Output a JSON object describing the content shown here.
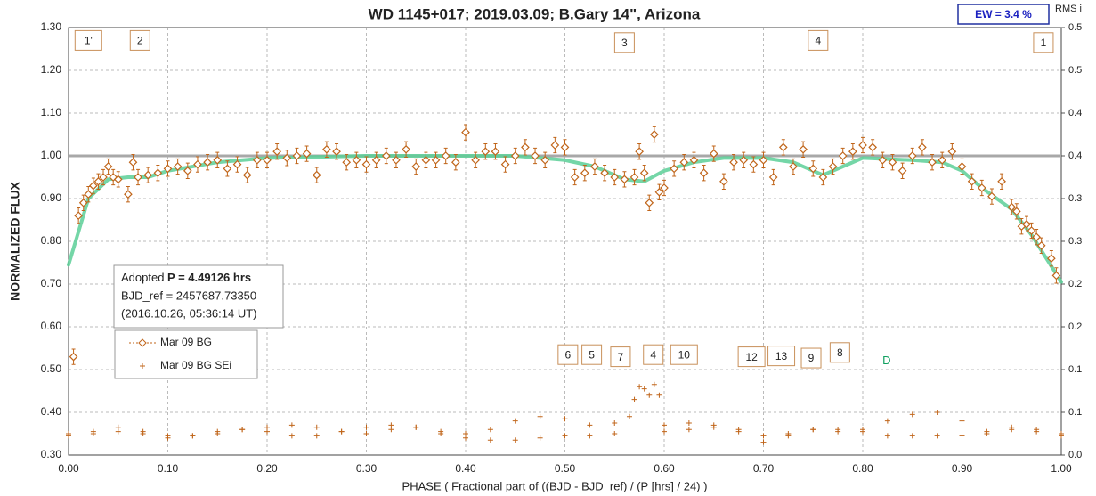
{
  "chart_data": {
    "type": "scatter",
    "title": "WD 1145+017; 2019.03.09; B.Gary 14\",  Arizona",
    "ew_label": "EW =  3.4 %",
    "rms_label": "RMS i",
    "xlabel": "PHASE ( Fractional part of ((BJD - BJD_ref) / (P [hrs] / 24) )",
    "ylabel": "NORMALIZED FLUX",
    "xlim": [
      0,
      1
    ],
    "xticks": [
      {
        "value": 0,
        "label": "0.00"
      },
      {
        "value": 0.1,
        "label": "0.10"
      },
      {
        "value": 0.2,
        "label": "0.20"
      },
      {
        "value": 0.3,
        "label": "0.30"
      },
      {
        "value": 0.4,
        "label": "0.40"
      },
      {
        "value": 0.5,
        "label": "0.50"
      },
      {
        "value": 0.6,
        "label": "0.60"
      },
      {
        "value": 0.7,
        "label": "0.70"
      },
      {
        "value": 0.8,
        "label": "0.80"
      },
      {
        "value": 0.9,
        "label": "0.90"
      },
      {
        "value": 1,
        "label": "1.00"
      }
    ],
    "ylim": [
      0.3,
      1.3
    ],
    "yticks": [
      {
        "value": 0.3,
        "label": "0.30"
      },
      {
        "value": 0.4,
        "label": "0.40"
      },
      {
        "value": 0.5,
        "label": "0.50"
      },
      {
        "value": 0.6,
        "label": "0.60"
      },
      {
        "value": 0.7,
        "label": "0.70"
      },
      {
        "value": 0.8,
        "label": "0.80"
      },
      {
        "value": 0.9,
        "label": "0.90"
      },
      {
        "value": 1.0,
        "label": "1.00"
      },
      {
        "value": 1.1,
        "label": "1.10"
      },
      {
        "value": 1.2,
        "label": "1.20"
      },
      {
        "value": 1.3,
        "label": "1.30"
      }
    ],
    "y2lim": [
      0,
      0.5
    ],
    "y2ticks": [
      {
        "value": 0,
        "label": "0.0"
      },
      {
        "value": 0.05,
        "label": "0.1"
      },
      {
        "value": 0.1,
        "label": "0.1"
      },
      {
        "value": 0.15,
        "label": "0.2"
      },
      {
        "value": 0.2,
        "label": "0.2"
      },
      {
        "value": 0.25,
        "label": "0.3"
      },
      {
        "value": 0.3,
        "label": "0.3"
      },
      {
        "value": 0.35,
        "label": "0.4"
      },
      {
        "value": 0.4,
        "label": "0.4"
      },
      {
        "value": 0.45,
        "label": "0.5"
      },
      {
        "value": 0.5,
        "label": "0.5"
      }
    ],
    "grid": true,
    "reference_line": 1.0,
    "info": {
      "line1_prefix": "Adopted ",
      "line1_bold": "P = 4.49126 hrs",
      "line2": "BJD_ref = 2457687.73350",
      "line3": "(2016.10.26, 05:36:14 UT)"
    },
    "series": [
      {
        "name": "Mar 09 BG",
        "color": "#c0651a",
        "marker": "diamond",
        "error": 0.018,
        "x": [
          0.005,
          0.01,
          0.015,
          0.02,
          0.025,
          0.03,
          0.035,
          0.04,
          0.045,
          0.05,
          0.06,
          0.065,
          0.07,
          0.08,
          0.09,
          0.1,
          0.11,
          0.12,
          0.13,
          0.14,
          0.15,
          0.16,
          0.17,
          0.18,
          0.19,
          0.2,
          0.21,
          0.22,
          0.23,
          0.24,
          0.25,
          0.26,
          0.27,
          0.28,
          0.29,
          0.3,
          0.31,
          0.32,
          0.33,
          0.34,
          0.35,
          0.36,
          0.37,
          0.38,
          0.39,
          0.4,
          0.41,
          0.42,
          0.43,
          0.44,
          0.45,
          0.46,
          0.47,
          0.48,
          0.49,
          0.5,
          0.51,
          0.52,
          0.53,
          0.54,
          0.55,
          0.56,
          0.57,
          0.575,
          0.58,
          0.585,
          0.59,
          0.595,
          0.6,
          0.61,
          0.62,
          0.63,
          0.64,
          0.65,
          0.66,
          0.67,
          0.68,
          0.69,
          0.7,
          0.71,
          0.72,
          0.73,
          0.74,
          0.75,
          0.76,
          0.77,
          0.78,
          0.79,
          0.8,
          0.81,
          0.82,
          0.83,
          0.84,
          0.85,
          0.86,
          0.87,
          0.88,
          0.89,
          0.9,
          0.91,
          0.92,
          0.93,
          0.94,
          0.95,
          0.955,
          0.96,
          0.965,
          0.97,
          0.975,
          0.98,
          0.99,
          0.995
        ],
        "values": [
          0.53,
          0.86,
          0.89,
          0.91,
          0.93,
          0.94,
          0.95,
          0.975,
          0.95,
          0.945,
          0.91,
          0.985,
          0.95,
          0.955,
          0.96,
          0.97,
          0.975,
          0.965,
          0.98,
          0.985,
          0.99,
          0.97,
          0.98,
          0.955,
          0.99,
          0.99,
          1.01,
          0.995,
          1.0,
          1.005,
          0.955,
          1.015,
          1.01,
          0.985,
          0.99,
          0.98,
          0.99,
          1.0,
          0.99,
          1.015,
          0.975,
          0.99,
          0.99,
          1.0,
          0.985,
          1.055,
          0.99,
          1.01,
          1.01,
          0.98,
          1.0,
          1.02,
          1.0,
          0.99,
          1.025,
          1.02,
          0.95,
          0.96,
          0.975,
          0.96,
          0.95,
          0.945,
          0.95,
          1.01,
          0.96,
          0.89,
          1.05,
          0.915,
          0.925,
          0.97,
          0.985,
          0.99,
          0.96,
          1.005,
          0.94,
          0.985,
          0.99,
          0.98,
          0.99,
          0.95,
          1.02,
          0.975,
          1.015,
          0.97,
          0.95,
          0.975,
          1.0,
          1.01,
          1.025,
          1.02,
          0.99,
          0.985,
          0.965,
          1.0,
          1.02,
          0.985,
          0.99,
          1.01,
          0.975,
          0.94,
          0.925,
          0.905,
          0.94,
          0.88,
          0.87,
          0.835,
          0.84,
          0.825,
          0.81,
          0.79,
          0.76,
          0.72
        ]
      },
      {
        "name": "Mar 09 BG SEi",
        "color": "#c0651a",
        "marker": "plus",
        "x": [
          0,
          0.025,
          0.05,
          0.075,
          0.1,
          0.125,
          0.15,
          0.175,
          0.2,
          0.225,
          0.25,
          0.275,
          0.3,
          0.325,
          0.35,
          0.375,
          0.4,
          0.425,
          0.45,
          0.475,
          0.5,
          0.525,
          0.55,
          0.565,
          0.57,
          0.575,
          0.58,
          0.585,
          0.59,
          0.595,
          0.6,
          0.625,
          0.65,
          0.675,
          0.7,
          0.725,
          0.75,
          0.775,
          0.8,
          0.825,
          0.85,
          0.875,
          0.9,
          0.925,
          0.95,
          0.975,
          1.0,
          0,
          0.025,
          0.05,
          0.075,
          0.1,
          0.125,
          0.15,
          0.175,
          0.2,
          0.225,
          0.25,
          0.275,
          0.3,
          0.325,
          0.35,
          0.375,
          0.4,
          0.425,
          0.45,
          0.475,
          0.5,
          0.525,
          0.55,
          0.6,
          0.625,
          0.65,
          0.675,
          0.7,
          0.725,
          0.75,
          0.775,
          0.8,
          0.825,
          0.85,
          0.875,
          0.9,
          0.925,
          0.95,
          0.975,
          1.0
        ],
        "values": [
          0.35,
          0.355,
          0.365,
          0.355,
          0.345,
          0.345,
          0.35,
          0.36,
          0.365,
          0.37,
          0.365,
          0.355,
          0.35,
          0.36,
          0.365,
          0.355,
          0.35,
          0.36,
          0.38,
          0.39,
          0.385,
          0.37,
          0.375,
          0.39,
          0.43,
          0.46,
          0.455,
          0.44,
          0.465,
          0.44,
          0.37,
          0.375,
          0.37,
          0.355,
          0.33,
          0.345,
          0.36,
          0.355,
          0.36,
          0.38,
          0.395,
          0.4,
          0.38,
          0.355,
          0.365,
          0.36,
          0.35,
          0.345,
          0.35,
          0.355,
          0.35,
          0.34,
          0.345,
          0.355,
          0.36,
          0.355,
          0.345,
          0.345,
          0.355,
          0.365,
          0.37,
          0.365,
          0.35,
          0.34,
          0.335,
          0.335,
          0.34,
          0.345,
          0.345,
          0.35,
          0.355,
          0.36,
          0.365,
          0.36,
          0.345,
          0.35,
          0.36,
          0.36,
          0.355,
          0.345,
          0.345,
          0.345,
          0.345,
          0.35,
          0.36,
          0.355,
          0.345
        ]
      }
    ],
    "fit": {
      "color": "#5ccf98",
      "x": [
        0,
        0.02,
        0.04,
        0.06,
        0.08,
        0.1,
        0.15,
        0.2,
        0.3,
        0.4,
        0.45,
        0.5,
        0.53,
        0.56,
        0.58,
        0.6,
        0.63,
        0.66,
        0.7,
        0.73,
        0.76,
        0.78,
        0.8,
        0.85,
        0.88,
        0.9,
        0.92,
        0.95,
        0.97,
        1.0
      ],
      "values": [
        0.745,
        0.9,
        0.945,
        0.95,
        0.95,
        0.965,
        0.985,
        0.995,
        1.0,
        1.0,
        1.0,
        0.99,
        0.975,
        0.945,
        0.94,
        0.965,
        0.985,
        0.995,
        0.995,
        0.985,
        0.955,
        0.975,
        0.995,
        0.99,
        0.985,
        0.965,
        0.925,
        0.875,
        0.815,
        0.705
      ]
    },
    "annotations": [
      {
        "text": "1'",
        "x": 0.02,
        "y": 1.27
      },
      {
        "text": "2",
        "x": 0.072,
        "y": 1.27
      },
      {
        "text": "3",
        "x": 0.56,
        "y": 1.265
      },
      {
        "text": "4",
        "x": 0.755,
        "y": 1.27
      },
      {
        "text": "1",
        "x": 0.982,
        "y": 1.265
      },
      {
        "text": "6",
        "x": 0.503,
        "y": 0.535
      },
      {
        "text": "5",
        "x": 0.527,
        "y": 0.535
      },
      {
        "text": "7",
        "x": 0.556,
        "y": 0.53
      },
      {
        "text": "4",
        "x": 0.589,
        "y": 0.535
      },
      {
        "text": "10",
        "x": 0.62,
        "y": 0.535
      },
      {
        "text": "12",
        "x": 0.688,
        "y": 0.53
      },
      {
        "text": "13",
        "x": 0.718,
        "y": 0.532
      },
      {
        "text": "9",
        "x": 0.748,
        "y": 0.527
      },
      {
        "text": "8",
        "x": 0.777,
        "y": 0.54
      },
      {
        "text": "D",
        "x": 0.824,
        "y": 0.522,
        "color": "#10a060",
        "box": false
      }
    ]
  }
}
